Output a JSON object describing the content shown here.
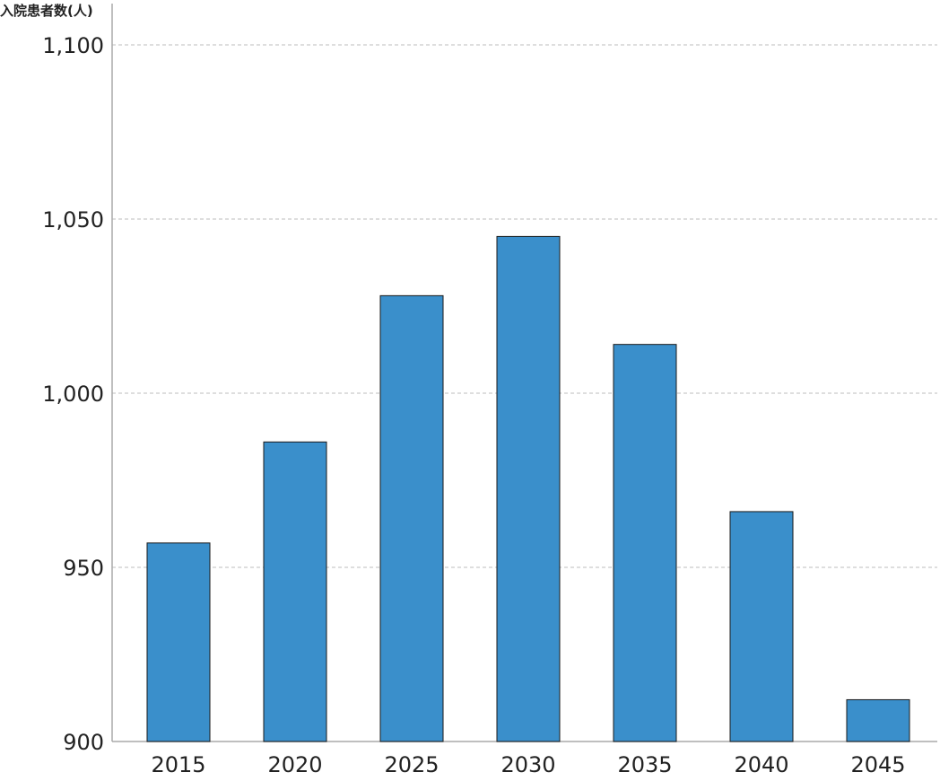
{
  "chart_data": {
    "type": "bar",
    "title": "",
    "ylabel": "入院患者数(人)",
    "xlabel": "",
    "categories": [
      "2015",
      "2020",
      "2025",
      "2030",
      "2035",
      "2040",
      "2045"
    ],
    "values": [
      957,
      986,
      1028,
      1045,
      1014,
      966,
      912
    ],
    "ylim": [
      900,
      1100
    ],
    "yticks": [
      900,
      950,
      1000,
      1050,
      1100
    ],
    "ytick_labels": [
      "900",
      "950",
      "1,000",
      "1,050",
      "1,100"
    ],
    "grid": true,
    "legend": "none",
    "colors": {
      "bar_fill": "#3a8fcb",
      "bar_stroke": "#1a1a1a",
      "grid": "#bdbdbd",
      "axis": "#aaaaaa",
      "text": "#222222"
    }
  }
}
